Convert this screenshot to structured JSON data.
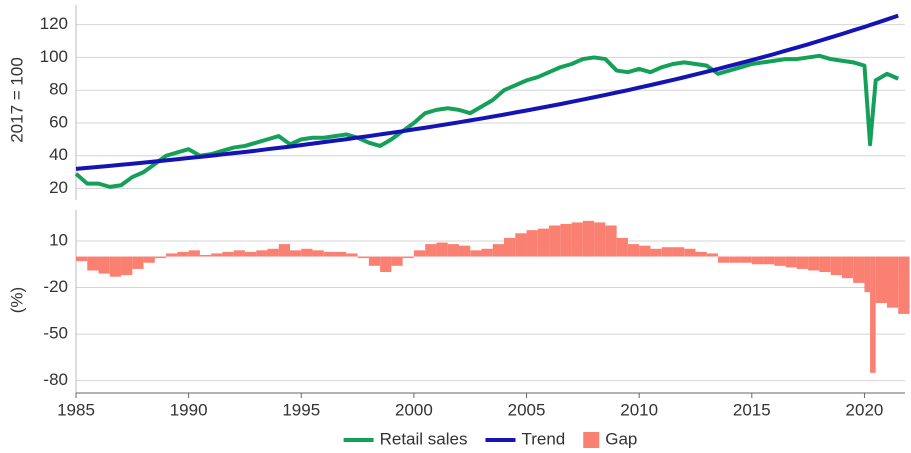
{
  "chart_data": [
    {
      "type": "line",
      "ylabel": "2017 = 100",
      "x": [
        1985.0,
        1985.5,
        1986.0,
        1986.5,
        1987.0,
        1987.5,
        1988.0,
        1988.5,
        1989.0,
        1989.5,
        1990.0,
        1990.5,
        1991.0,
        1991.5,
        1992.0,
        1992.5,
        1993.0,
        1993.5,
        1994.0,
        1994.5,
        1995.0,
        1995.5,
        1996.0,
        1996.5,
        1997.0,
        1997.5,
        1998.0,
        1998.5,
        1999.0,
        1999.5,
        2000.0,
        2000.5,
        2001.0,
        2001.5,
        2002.0,
        2002.5,
        2003.0,
        2003.5,
        2004.0,
        2004.5,
        2005.0,
        2005.5,
        2006.0,
        2006.5,
        2007.0,
        2007.5,
        2008.0,
        2008.5,
        2009.0,
        2009.5,
        2010.0,
        2010.5,
        2011.0,
        2011.5,
        2012.0,
        2012.5,
        2013.0,
        2013.5,
        2014.0,
        2014.5,
        2015.0,
        2015.5,
        2016.0,
        2016.5,
        2017.0,
        2017.5,
        2018.0,
        2018.5,
        2019.0,
        2019.5,
        2020.0,
        2020.25,
        2020.5,
        2021.0,
        2021.5
      ],
      "series": [
        {
          "name": "Retail sales",
          "color": "#15a05a",
          "values": [
            29,
            23,
            23,
            21,
            22,
            27,
            30,
            35,
            40,
            42,
            44,
            40,
            41,
            43,
            45,
            46,
            48,
            50,
            52,
            47,
            50,
            51,
            51,
            52,
            53,
            51,
            48,
            46,
            50,
            55,
            60,
            66,
            68,
            69,
            68,
            66,
            70,
            74,
            80,
            83,
            86,
            88,
            91,
            94,
            96,
            99,
            100,
            99,
            92,
            91,
            93,
            91,
            94,
            96,
            97,
            96,
            95,
            90,
            92,
            94,
            96,
            97,
            98,
            99,
            99,
            100,
            101,
            99,
            98,
            97,
            95,
            47,
            86,
            90,
            87
          ]
        },
        {
          "name": "Trend",
          "color": "#1414b4",
          "values": [
            32.0,
            32.6,
            33.2,
            33.8,
            34.5,
            35.1,
            35.8,
            36.5,
            37.2,
            37.9,
            38.6,
            39.3,
            40.0,
            40.8,
            41.6,
            42.3,
            43.1,
            44.0,
            44.8,
            45.6,
            46.5,
            47.4,
            48.3,
            49.2,
            50.1,
            51.1,
            52.0,
            53.0,
            54.0,
            55.0,
            56.1,
            57.1,
            58.2,
            59.3,
            60.4,
            61.6,
            62.7,
            63.9,
            65.1,
            66.4,
            67.6,
            68.9,
            70.2,
            71.5,
            72.9,
            74.3,
            75.7,
            77.1,
            78.6,
            80.0,
            81.6,
            83.1,
            84.7,
            86.3,
            87.9,
            89.6,
            91.3,
            93.0,
            94.8,
            96.6,
            98.4,
            100.2,
            102.1,
            104.1,
            106.0,
            108.0,
            110.1,
            112.2,
            114.3,
            116.5,
            118.6,
            119.8,
            120.9,
            123.2,
            125.5
          ]
        }
      ],
      "xlim": [
        1985,
        2021.8
      ],
      "ylim": [
        13,
        132
      ],
      "yticks": [
        20,
        40,
        60,
        80,
        100,
        120
      ],
      "grid": true
    },
    {
      "type": "bar",
      "ylabel": "(%)",
      "x": [
        1985.0,
        1985.5,
        1986.0,
        1986.5,
        1987.0,
        1987.5,
        1988.0,
        1988.5,
        1989.0,
        1989.5,
        1990.0,
        1990.5,
        1991.0,
        1991.5,
        1992.0,
        1992.5,
        1993.0,
        1993.5,
        1994.0,
        1994.5,
        1995.0,
        1995.5,
        1996.0,
        1996.5,
        1997.0,
        1997.5,
        1998.0,
        1998.5,
        1999.0,
        1999.5,
        2000.0,
        2000.5,
        2001.0,
        2001.5,
        2002.0,
        2002.5,
        2003.0,
        2003.5,
        2004.0,
        2004.5,
        2005.0,
        2005.5,
        2006.0,
        2006.5,
        2007.0,
        2007.5,
        2008.0,
        2008.5,
        2009.0,
        2009.5,
        2010.0,
        2010.5,
        2011.0,
        2011.5,
        2012.0,
        2012.5,
        2013.0,
        2013.5,
        2014.0,
        2014.5,
        2015.0,
        2015.5,
        2016.0,
        2016.5,
        2017.0,
        2017.5,
        2018.0,
        2018.5,
        2019.0,
        2019.5,
        2020.0,
        2020.25,
        2020.5,
        2021.0,
        2021.5
      ],
      "series": [
        {
          "name": "Gap",
          "color": "#fa8072",
          "values": [
            -3,
            -9,
            -11,
            -13,
            -12,
            -8,
            -4,
            -1,
            2,
            3,
            4,
            1,
            2,
            3,
            4,
            3,
            4,
            5,
            8,
            4,
            5,
            4,
            3,
            3,
            2,
            -1,
            -6,
            -10,
            -6,
            -1,
            4,
            8,
            9,
            8,
            7,
            4,
            5,
            8,
            12,
            15,
            17,
            18,
            20,
            21,
            22,
            23,
            22,
            20,
            12,
            8,
            7,
            5,
            6,
            6,
            5,
            3,
            2,
            -4,
            -4,
            -4,
            -5,
            -5,
            -6,
            -7,
            -8,
            -9,
            -10,
            -12,
            -14,
            -17,
            -23,
            -75,
            -30,
            -33,
            -37
          ]
        }
      ],
      "xlim": [
        1985,
        2021.8
      ],
      "xticks": [
        1985,
        1990,
        1995,
        2000,
        2005,
        2010,
        2015,
        2020
      ],
      "ylim": [
        -88,
        30
      ],
      "yticks": [
        10,
        -20,
        -50,
        -80
      ],
      "grid": true
    }
  ]
}
